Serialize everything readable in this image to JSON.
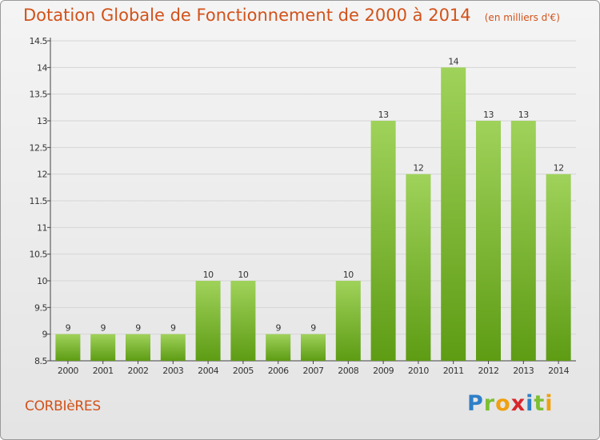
{
  "header": {
    "title": "Dotation Globale de Fonctionnement de 2000 à 2014",
    "subtitle": "(en milliers d'€)"
  },
  "footer": {
    "commune": "CORBIèRES",
    "brand": "Proxiti",
    "brand_letters": [
      {
        "ch": "P",
        "color": "#2f7fc7"
      },
      {
        "ch": "r",
        "color": "#7cbf33"
      },
      {
        "ch": "o",
        "color": "#f0a010"
      },
      {
        "ch": "x",
        "color": "#d8262b"
      },
      {
        "ch": "i",
        "color": "#2f7fc7"
      },
      {
        "ch": "t",
        "color": "#7cbf33"
      },
      {
        "ch": "i",
        "color": "#f0a010"
      }
    ]
  },
  "colors": {
    "title": "#d2521a",
    "bar_top": "#9fd25a",
    "bar_bottom": "#5e9c14",
    "grid": "#d5d5d5",
    "axis": "#444444"
  },
  "chart_data": {
    "type": "bar",
    "categories": [
      "2000",
      "2001",
      "2002",
      "2003",
      "2004",
      "2005",
      "2006",
      "2007",
      "2008",
      "2009",
      "2010",
      "2011",
      "2012",
      "2013",
      "2014"
    ],
    "values": [
      9,
      9,
      9,
      9,
      10,
      10,
      9,
      9,
      10,
      13,
      12,
      14,
      13,
      13,
      12
    ],
    "data_labels": [
      "9",
      "9",
      "9",
      "9",
      "10",
      "10",
      "9",
      "9",
      "10",
      "13",
      "12",
      "14",
      "13",
      "13",
      "12"
    ],
    "ylim": [
      8.5,
      14.5
    ],
    "yticks": [
      8.5,
      9,
      9.5,
      10,
      10.5,
      11,
      11.5,
      12,
      12.5,
      13,
      13.5,
      14,
      14.5
    ],
    "ytick_labels": [
      "8.5",
      "9",
      "9.5",
      "10",
      "10.5",
      "11",
      "11.5",
      "12",
      "12.5",
      "13",
      "13.5",
      "14",
      "14.5"
    ],
    "grid": true,
    "xlabel": "",
    "ylabel": ""
  }
}
